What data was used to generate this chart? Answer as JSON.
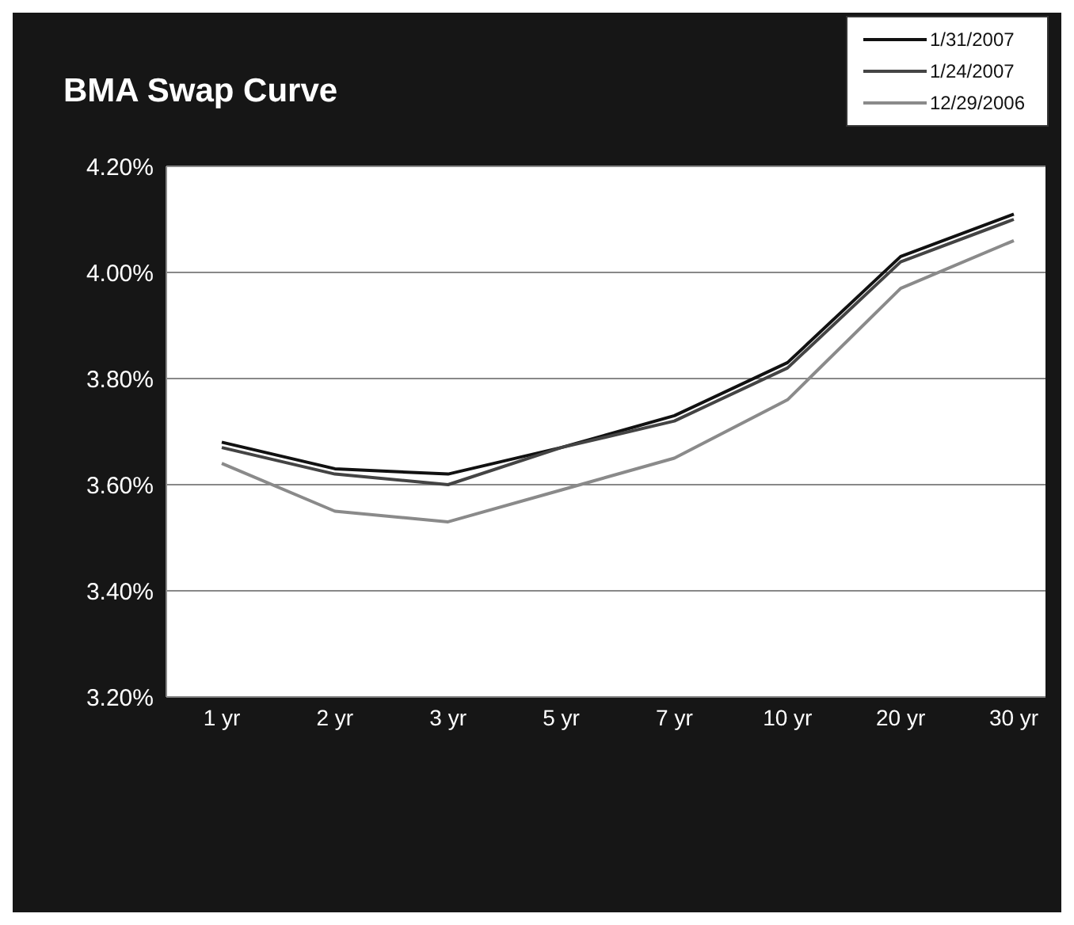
{
  "chart_data": {
    "type": "line",
    "title": "BMA Swap Curve",
    "categories": [
      "1 yr",
      "2 yr",
      "3 yr",
      "5 yr",
      "7 yr",
      "10 yr",
      "20 yr",
      "30 yr"
    ],
    "series": [
      {
        "name": "1/31/2007",
        "color": "#111111",
        "values": [
          3.68,
          3.63,
          3.62,
          3.67,
          3.73,
          3.83,
          4.03,
          4.11
        ]
      },
      {
        "name": "1/24/2007",
        "color": "#444444",
        "values": [
          3.67,
          3.62,
          3.6,
          3.67,
          3.72,
          3.82,
          4.02,
          4.1
        ]
      },
      {
        "name": "12/29/2006",
        "color": "#8a8a8a",
        "values": [
          3.64,
          3.55,
          3.53,
          3.59,
          3.65,
          3.76,
          3.97,
          4.06
        ]
      }
    ],
    "ylim": [
      3.2,
      4.2
    ],
    "yticks": [
      {
        "value": 3.2,
        "label": "3.20%"
      },
      {
        "value": 3.4,
        "label": "3.40%"
      },
      {
        "value": 3.6,
        "label": "3.60%"
      },
      {
        "value": 3.8,
        "label": "3.80%"
      },
      {
        "value": 4.0,
        "label": "4.00%"
      },
      {
        "value": 4.2,
        "label": "4.20%"
      }
    ],
    "grid": "y",
    "legend": "top right",
    "marker": "none",
    "line_style": "solid"
  }
}
